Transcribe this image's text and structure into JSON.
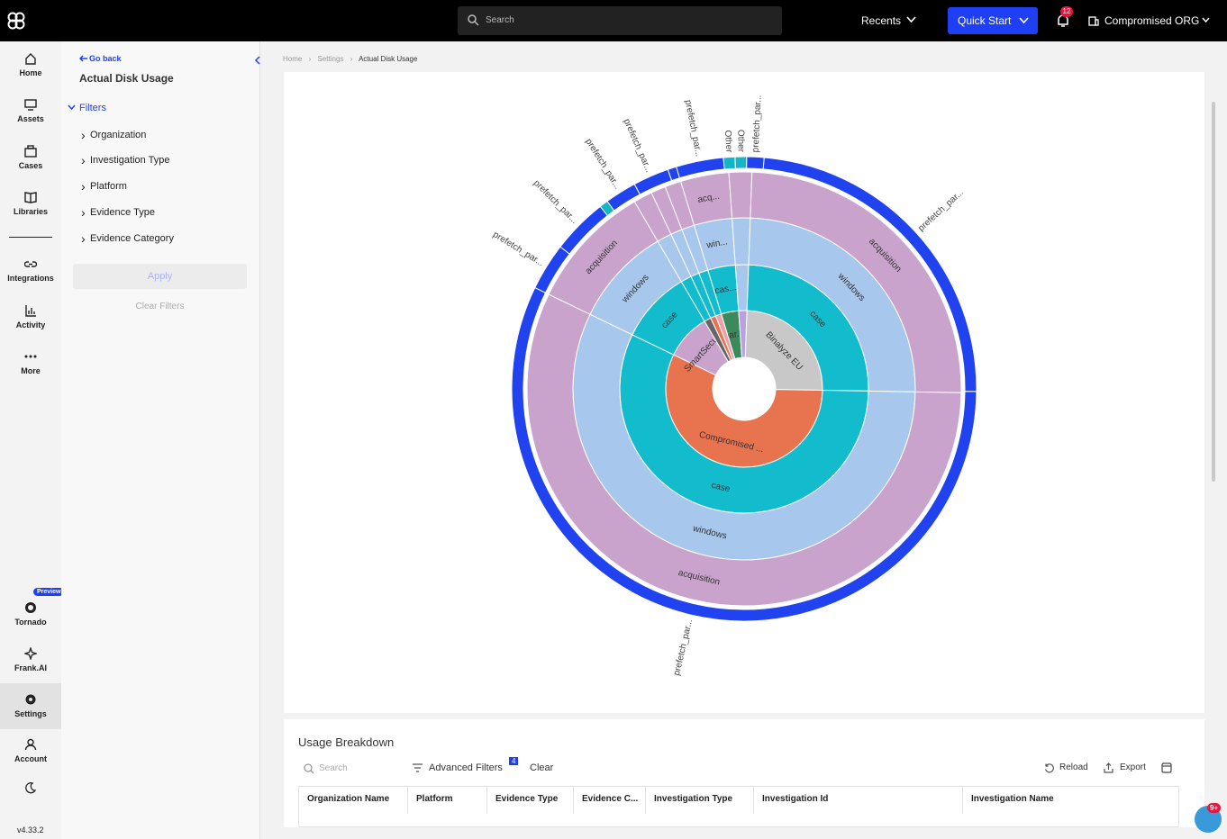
{
  "topbar": {
    "search_placeholder": "Search",
    "recents": "Recents",
    "quick_start": "Quick Start",
    "notifications": 12,
    "org": "Compromised ORG"
  },
  "nav": {
    "items": [
      "Home",
      "Assets",
      "Cases",
      "Libraries",
      "Integrations",
      "Activity",
      "More"
    ],
    "preview_badge": "Preview",
    "bottom": [
      "Tornado",
      "Frank.AI",
      "Settings",
      "Account"
    ],
    "version": "v4.33.2"
  },
  "filters": {
    "go_back": "Go back",
    "title": "Actual Disk Usage",
    "heading": "Filters",
    "items": [
      "Organization",
      "Investigation Type",
      "Platform",
      "Evidence Type",
      "Evidence Category"
    ],
    "apply": "Apply",
    "clear": "Clear Filters"
  },
  "breadcrumb": [
    "Home",
    "Settings",
    "Actual Disk Usage"
  ],
  "chart_data": {
    "type": "sunburst",
    "rings": [
      {
        "segments": [
          {
            "label": "par...",
            "value": 3.6,
            "color": "#3a8a5c"
          },
          {
            "label": null,
            "value": 1.7,
            "color": "#b9a0e0"
          },
          {
            "label": "Binalyze EU",
            "value": 24.7,
            "color": "#c8c8c8"
          },
          {
            "label": "Compromised ...",
            "value": 56.9,
            "color": "#e8734f"
          },
          {
            "label": "SmartSecu...",
            "value": 9.4,
            "color": "#c9a3cb"
          },
          {
            "label": null,
            "value": 1.4,
            "color": "#666666"
          },
          {
            "label": null,
            "value": 1.1,
            "color": "#e8734f"
          },
          {
            "label": null,
            "value": 1.2,
            "color": "#e9a3b0"
          }
        ]
      },
      {
        "segments": [
          {
            "label": "cas...",
            "value": 3.6,
            "color": "#13bccc"
          },
          {
            "label": null,
            "value": 1.7,
            "color": "#a7c7ec"
          },
          {
            "label": "case",
            "value": 24.7,
            "color": "#13bccc"
          },
          {
            "label": "case",
            "value": 56.9,
            "color": "#13bccc"
          },
          {
            "label": "case",
            "value": 9.4,
            "color": "#13bccc"
          },
          {
            "label": null,
            "value": 1.4,
            "color": "#13bccc"
          },
          {
            "label": null,
            "value": 1.1,
            "color": "#13bccc"
          },
          {
            "label": null,
            "value": 1.2,
            "color": "#13bccc"
          }
        ]
      },
      {
        "segments": [
          {
            "label": "win...",
            "value": 3.6,
            "color": "#a7c7ec"
          },
          {
            "label": null,
            "value": 1.7,
            "color": "#a7c7ec"
          },
          {
            "label": "windows",
            "value": 24.7,
            "color": "#a7c7ec"
          },
          {
            "label": "windows",
            "value": 56.9,
            "color": "#a7c7ec"
          },
          {
            "label": "windows",
            "value": 9.4,
            "color": "#a7c7ec"
          },
          {
            "label": null,
            "value": 1.4,
            "color": "#a7c7ec"
          },
          {
            "label": null,
            "value": 1.1,
            "color": "#a7c7ec"
          },
          {
            "label": null,
            "value": 1.2,
            "color": "#a7c7ec"
          }
        ]
      },
      {
        "segments": [
          {
            "label": "acq...",
            "value": 3.6,
            "color": "#c9a3cb"
          },
          {
            "label": null,
            "value": 1.7,
            "color": "#c9a3cb"
          },
          {
            "label": "acquisition",
            "value": 24.7,
            "color": "#c9a3cb"
          },
          {
            "label": "acquisition",
            "value": 56.9,
            "color": "#c9a3cb"
          },
          {
            "label": "acquisition",
            "value": 9.4,
            "color": "#c9a3cb"
          },
          {
            "label": null,
            "value": 1.4,
            "color": "#c9a3cb"
          },
          {
            "label": null,
            "value": 1.1,
            "color": "#c9a3cb"
          },
          {
            "label": null,
            "value": 1.2,
            "color": "#c9a3cb"
          }
        ]
      },
      {
        "segments": [
          {
            "label": "prefetch_par...",
            "value": 3.3,
            "color": "#2142ef"
          },
          {
            "label": "Other",
            "value": 0.8,
            "color": "#14b5c4"
          },
          {
            "label": "Other",
            "value": 0.8,
            "color": "#14b5c4"
          },
          {
            "label": "prefetch_par...",
            "value": 1.2,
            "color": "#2142ef"
          },
          {
            "label": "prefetch_par...",
            "value": 23.8,
            "color": "#2142ef"
          },
          {
            "label": "prefetch_par...",
            "value": 57,
            "color": "#2142ef"
          },
          {
            "label": "prefetch_par...",
            "value": 3.3,
            "color": "#2142ef"
          },
          {
            "label": "prefetch_par...",
            "value": 3.9,
            "color": "#2142ef"
          },
          {
            "label": null,
            "value": 0.6,
            "color": "#14b5c4"
          },
          {
            "label": "prefetch_par...",
            "value": 2.2,
            "color": "#2142ef"
          },
          {
            "label": "prefetch_par...",
            "value": 2.5,
            "color": "#2142ef"
          },
          {
            "label": null,
            "value": 0.6,
            "color": "#2142ef"
          }
        ]
      }
    ]
  },
  "table": {
    "title": "Usage Breakdown",
    "search_placeholder": "Search",
    "advanced_filters": "Advanced Filters",
    "filter_count": 4,
    "clear": "Clear",
    "reload": "Reload",
    "export": "Export",
    "columns": [
      "Organization Name",
      "Platform",
      "Evidence Type",
      "Evidence C...",
      "Investigation Type",
      "Investigation Id",
      "Investigation Name"
    ]
  },
  "chat_badge": "9+"
}
